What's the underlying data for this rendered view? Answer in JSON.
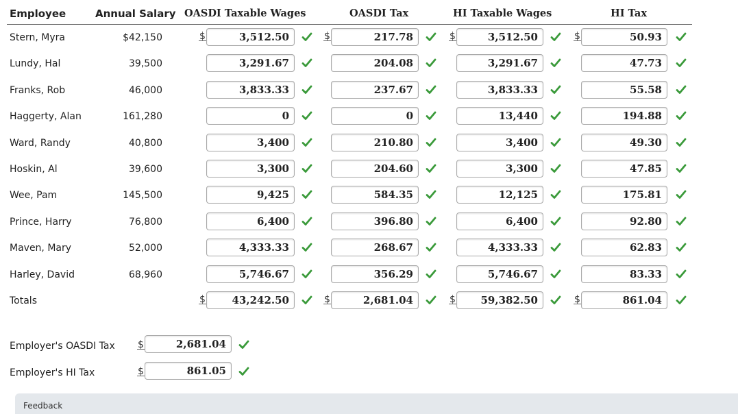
{
  "headers": {
    "employee": "Employee",
    "annual_salary": "Annual Salary",
    "oasdi_taxable": "OASDI Taxable Wages",
    "oasdi_tax": "OASDI Tax",
    "hi_taxable": "HI Taxable Wages",
    "hi_tax": "HI Tax"
  },
  "currency_symbol": "$",
  "rows": [
    {
      "name": "Stern, Myra",
      "salary": "$42,150",
      "oasdi_taxable": "3,512.50",
      "oasdi_tax": "217.78",
      "hi_taxable": "3,512.50",
      "hi_tax": "50.93",
      "show_dollar": true
    },
    {
      "name": "Lundy, Hal",
      "salary": "39,500",
      "oasdi_taxable": "3,291.67",
      "oasdi_tax": "204.08",
      "hi_taxable": "3,291.67",
      "hi_tax": "47.73",
      "show_dollar": false
    },
    {
      "name": "Franks, Rob",
      "salary": "46,000",
      "oasdi_taxable": "3,833.33",
      "oasdi_tax": "237.67",
      "hi_taxable": "3,833.33",
      "hi_tax": "55.58",
      "show_dollar": false
    },
    {
      "name": "Haggerty, Alan",
      "salary": "161,280",
      "oasdi_taxable": "0",
      "oasdi_tax": "0",
      "hi_taxable": "13,440",
      "hi_tax": "194.88",
      "show_dollar": false
    },
    {
      "name": "Ward, Randy",
      "salary": "40,800",
      "oasdi_taxable": "3,400",
      "oasdi_tax": "210.80",
      "hi_taxable": "3,400",
      "hi_tax": "49.30",
      "show_dollar": false
    },
    {
      "name": "Hoskin, Al",
      "salary": "39,600",
      "oasdi_taxable": "3,300",
      "oasdi_tax": "204.60",
      "hi_taxable": "3,300",
      "hi_tax": "47.85",
      "show_dollar": false
    },
    {
      "name": "Wee, Pam",
      "salary": "145,500",
      "oasdi_taxable": "9,425",
      "oasdi_tax": "584.35",
      "hi_taxable": "12,125",
      "hi_tax": "175.81",
      "show_dollar": false
    },
    {
      "name": "Prince, Harry",
      "salary": "76,800",
      "oasdi_taxable": "6,400",
      "oasdi_tax": "396.80",
      "hi_taxable": "6,400",
      "hi_tax": "92.80",
      "show_dollar": false
    },
    {
      "name": "Maven, Mary",
      "salary": "52,000",
      "oasdi_taxable": "4,333.33",
      "oasdi_tax": "268.67",
      "hi_taxable": "4,333.33",
      "hi_tax": "62.83",
      "show_dollar": false
    },
    {
      "name": "Harley, David",
      "salary": "68,960",
      "oasdi_taxable": "5,746.67",
      "oasdi_tax": "356.29",
      "hi_taxable": "5,746.67",
      "hi_tax": "83.33",
      "show_dollar": false
    },
    {
      "name": "Totals",
      "salary": "",
      "oasdi_taxable": "43,242.50",
      "oasdi_tax": "2,681.04",
      "hi_taxable": "59,382.50",
      "hi_tax": "861.04",
      "show_dollar": true
    }
  ],
  "employer": [
    {
      "label": "Employer's OASDI Tax",
      "value": "2,681.04"
    },
    {
      "label": "Employer's HI Tax",
      "value": "861.05"
    }
  ],
  "feedback_label": "Feedback",
  "colors": {
    "check": "#3a9a3a",
    "box_border": "#a9a9a9",
    "feedback_bg": "#e4e8ec"
  },
  "icons": {
    "check": "checkmark-icon"
  }
}
